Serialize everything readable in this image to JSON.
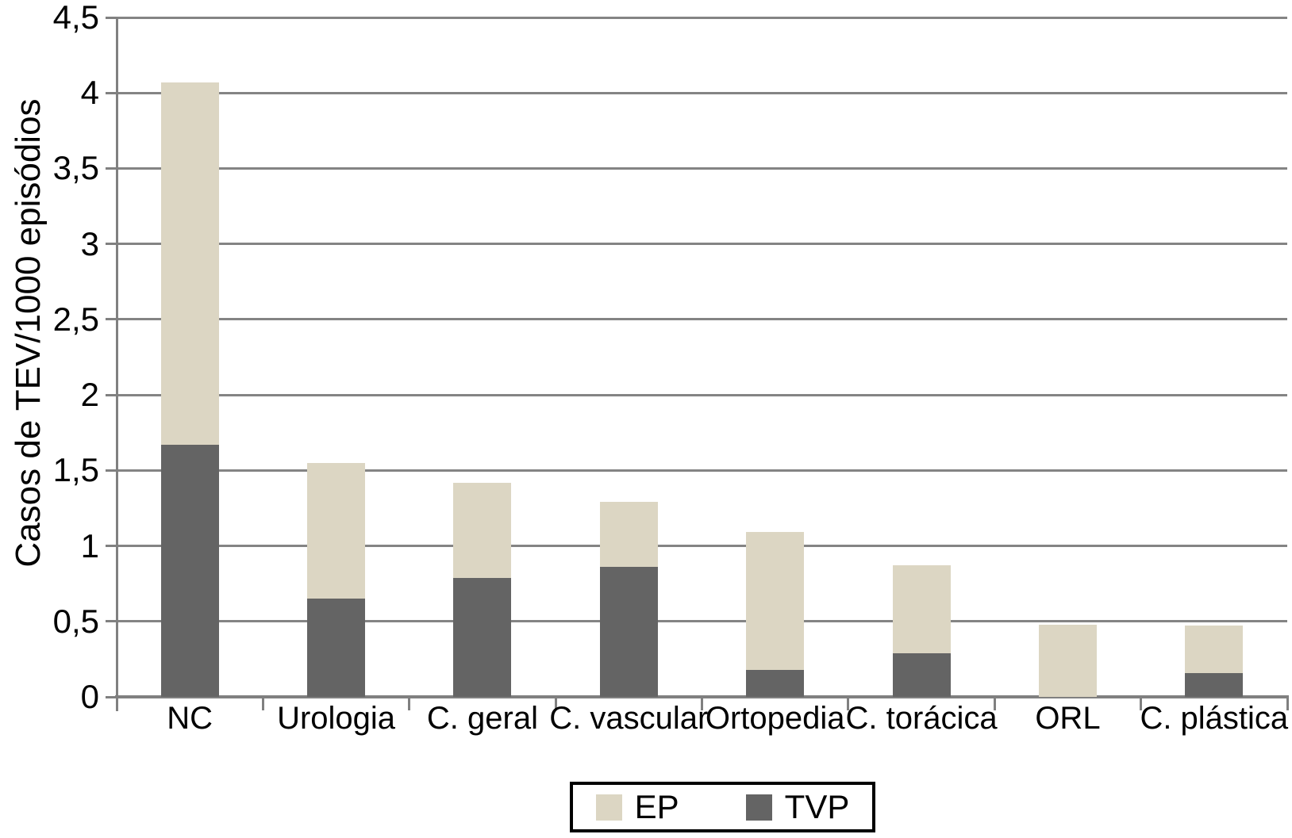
{
  "chart_data": {
    "type": "bar",
    "stacked": true,
    "title": "",
    "xlabel": "",
    "ylabel": "Casos de TEV/1000 episódios",
    "categories": [
      "NC",
      "Urologia",
      "C. geral",
      "C. vascular",
      "Ortopedia",
      "C. torácica",
      "ORL",
      "C. plástica"
    ],
    "series": [
      {
        "name": "TVP",
        "color": "#646464",
        "values": [
          1.67,
          0.65,
          0.79,
          0.86,
          0.18,
          0.29,
          0,
          0.16
        ]
      },
      {
        "name": "EP",
        "color": "#dcd6c3",
        "values": [
          2.4,
          0.9,
          0.63,
          0.43,
          0.91,
          0.58,
          0.48,
          0.31
        ]
      }
    ],
    "stack_totals": [
      4.07,
      1.55,
      1.42,
      1.29,
      1.09,
      0.87,
      0.48,
      0.47
    ],
    "ylim": [
      0,
      4.5
    ],
    "ytick_step": 0.5,
    "ytick_labels": [
      "0",
      "0,5",
      "1",
      "1,5",
      "2",
      "2,5",
      "3",
      "3,5",
      "4",
      "4,5"
    ],
    "decimal_separator": ",",
    "grid": "horizontal",
    "legend": {
      "position": "bottom",
      "border": true,
      "items": [
        {
          "label": "EP",
          "color": "#dcd6c3"
        },
        {
          "label": "TVP",
          "color": "#646464"
        }
      ]
    }
  },
  "colors": {
    "background": "#ffffff",
    "grid": "#848484",
    "axis": "#808080",
    "text": "#000000",
    "legend_border": "#000000"
  }
}
